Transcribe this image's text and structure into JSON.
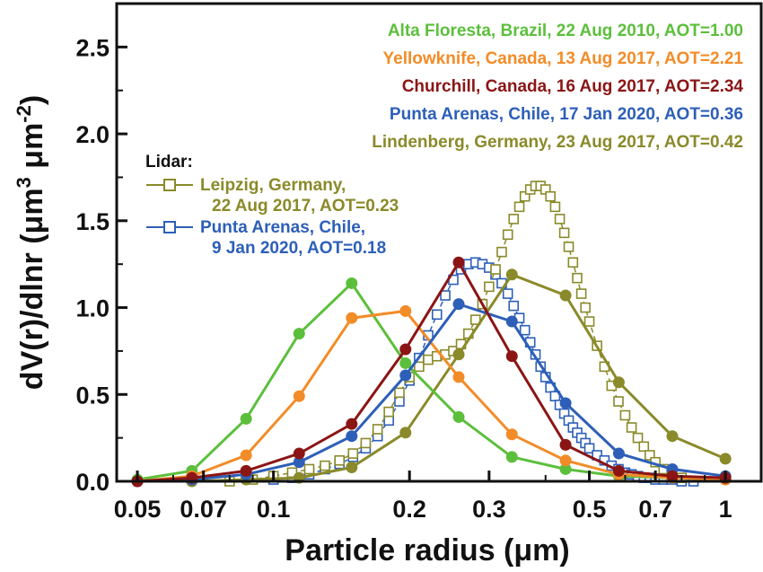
{
  "chart_data": {
    "type": "line",
    "xlabel": "Particle radius (μm)",
    "ylabel_main": "dV(r)/dlnr (μm",
    "ylabel_exp1": "3",
    "ylabel_mid": " μm",
    "ylabel_exp2": "-2",
    "ylabel_end": ")",
    "xscale": "log",
    "xlim": [
      0.045,
      1.2
    ],
    "ylim": [
      0,
      2.75
    ],
    "x_ticks": [
      {
        "value": 0.05,
        "label": "0.05"
      },
      {
        "value": 0.07,
        "label": "0.07"
      },
      {
        "value": 0.1,
        "label": "0.1"
      },
      {
        "value": 0.2,
        "label": "0.2"
      },
      {
        "value": 0.3,
        "label": "0.3"
      },
      {
        "value": 0.5,
        "label": "0.5"
      },
      {
        "value": 0.7,
        "label": "0.7"
      },
      {
        "value": 1,
        "label": "1"
      }
    ],
    "y_ticks": [
      {
        "value": 0.0,
        "label": "0.0"
      },
      {
        "value": 0.5,
        "label": "0.5"
      },
      {
        "value": 1.0,
        "label": "1.0"
      },
      {
        "value": 1.5,
        "label": "1.5"
      },
      {
        "value": 2.0,
        "label": "2.0"
      },
      {
        "value": 2.5,
        "label": "2.5"
      }
    ],
    "legend_placement": "top-right",
    "lidar_legend_title": "Lidar:",
    "series": [
      {
        "name": "Alta Floresta, Brazil, 22 Aug 2010, AOT=1.00",
        "color": "#5cbf3c",
        "marker": "filled-circle",
        "line": "solid",
        "x": [
          0.05,
          0.066,
          0.087,
          0.114,
          0.149,
          0.196,
          0.257,
          0.337,
          0.443,
          0.581,
          0.763,
          1.0
        ],
        "y": [
          0.01,
          0.06,
          0.36,
          0.85,
          1.14,
          0.68,
          0.37,
          0.14,
          0.07,
          0.03,
          0.02,
          0.01
        ]
      },
      {
        "name": "Yellowknife, Canada, 13 Aug 2017, AOT=2.21",
        "color": "#f28c28",
        "marker": "filled-circle",
        "line": "solid",
        "x": [
          0.05,
          0.066,
          0.087,
          0.114,
          0.149,
          0.196,
          0.257,
          0.337,
          0.443,
          0.581,
          0.763,
          1.0
        ],
        "y": [
          0.0,
          0.03,
          0.15,
          0.49,
          0.94,
          0.98,
          0.6,
          0.27,
          0.12,
          0.04,
          0.02,
          0.01
        ]
      },
      {
        "name": "Churchill, Canada, 16 Aug 2017, AOT=2.34",
        "color": "#8b1515",
        "marker": "filled-circle",
        "line": "solid",
        "x": [
          0.05,
          0.066,
          0.087,
          0.114,
          0.149,
          0.196,
          0.257,
          0.337,
          0.443,
          0.581,
          0.763,
          1.0
        ],
        "y": [
          0.0,
          0.02,
          0.06,
          0.16,
          0.33,
          0.76,
          1.26,
          0.72,
          0.21,
          0.06,
          0.03,
          0.02
        ]
      },
      {
        "name": "Punta Arenas, Chile, 17 Jan 2020, AOT=0.36",
        "color": "#2d5fb8",
        "marker": "filled-circle",
        "line": "solid",
        "x": [
          0.05,
          0.066,
          0.087,
          0.114,
          0.149,
          0.196,
          0.257,
          0.337,
          0.443,
          0.581,
          0.763,
          1.0
        ],
        "y": [
          0.0,
          0.01,
          0.04,
          0.11,
          0.26,
          0.61,
          1.02,
          0.92,
          0.45,
          0.16,
          0.07,
          0.03
        ]
      },
      {
        "name": "Lindenberg, Germany, 23 Aug 2017, AOT=0.42",
        "color": "#8a8a2a",
        "marker": "filled-circle",
        "line": "solid",
        "x": [
          0.05,
          0.066,
          0.087,
          0.114,
          0.149,
          0.196,
          0.257,
          0.337,
          0.443,
          0.581,
          0.763,
          1.0
        ],
        "y": [
          0.0,
          0.0,
          0.01,
          0.02,
          0.08,
          0.28,
          0.73,
          1.19,
          1.07,
          0.57,
          0.26,
          0.13
        ]
      },
      {
        "name": "Leipzig, Germany,",
        "name_line2": "22 Aug 2017, AOT=0.23",
        "color": "#8a8a2a",
        "marker": "open-square",
        "line": "dashed",
        "lidar": true,
        "x": [
          0.08,
          0.09,
          0.1,
          0.11,
          0.12,
          0.13,
          0.14,
          0.15,
          0.16,
          0.17,
          0.18,
          0.19,
          0.2,
          0.21,
          0.22,
          0.23,
          0.24,
          0.25,
          0.26,
          0.27,
          0.28,
          0.29,
          0.3,
          0.31,
          0.32,
          0.33,
          0.34,
          0.35,
          0.36,
          0.37,
          0.38,
          0.39,
          0.4,
          0.41,
          0.42,
          0.43,
          0.44,
          0.45,
          0.46,
          0.47,
          0.48,
          0.49,
          0.5,
          0.52,
          0.54,
          0.56,
          0.58,
          0.6,
          0.62,
          0.64,
          0.66,
          0.68,
          0.7,
          0.73,
          0.76,
          0.8
        ],
        "y": [
          0.0,
          0.01,
          0.03,
          0.05,
          0.07,
          0.09,
          0.12,
          0.16,
          0.22,
          0.3,
          0.4,
          0.51,
          0.6,
          0.66,
          0.7,
          0.72,
          0.73,
          0.75,
          0.79,
          0.85,
          0.93,
          1.02,
          1.12,
          1.22,
          1.32,
          1.42,
          1.51,
          1.58,
          1.64,
          1.68,
          1.7,
          1.7,
          1.68,
          1.64,
          1.58,
          1.51,
          1.43,
          1.35,
          1.26,
          1.17,
          1.08,
          1.0,
          0.92,
          0.78,
          0.66,
          0.55,
          0.46,
          0.38,
          0.31,
          0.25,
          0.2,
          0.15,
          0.11,
          0.07,
          0.04,
          0.02
        ]
      },
      {
        "name": "Punta Arenas, Chile,",
        "name_line2": "9 Jan 2020, AOT=0.18",
        "color": "#2d5fb8",
        "marker": "open-square",
        "line": "dashed",
        "lidar": true,
        "x": [
          0.1,
          0.11,
          0.12,
          0.13,
          0.14,
          0.15,
          0.16,
          0.17,
          0.18,
          0.19,
          0.2,
          0.21,
          0.22,
          0.23,
          0.24,
          0.25,
          0.26,
          0.27,
          0.28,
          0.29,
          0.3,
          0.31,
          0.32,
          0.33,
          0.34,
          0.35,
          0.36,
          0.37,
          0.38,
          0.39,
          0.4,
          0.41,
          0.42,
          0.43,
          0.44,
          0.45,
          0.46,
          0.47,
          0.48,
          0.49,
          0.5,
          0.52,
          0.54,
          0.56,
          0.58,
          0.6,
          0.62,
          0.64,
          0.66,
          0.68,
          0.7,
          0.73,
          0.76,
          0.8,
          0.85
        ],
        "y": [
          0.01,
          0.02,
          0.04,
          0.07,
          0.1,
          0.14,
          0.19,
          0.26,
          0.35,
          0.46,
          0.58,
          0.71,
          0.84,
          0.96,
          1.07,
          1.16,
          1.22,
          1.25,
          1.26,
          1.25,
          1.23,
          1.19,
          1.14,
          1.08,
          1.01,
          0.94,
          0.87,
          0.8,
          0.73,
          0.66,
          0.6,
          0.54,
          0.49,
          0.44,
          0.39,
          0.35,
          0.31,
          0.28,
          0.25,
          0.22,
          0.19,
          0.15,
          0.12,
          0.09,
          0.07,
          0.05,
          0.04,
          0.03,
          0.02,
          0.02,
          0.01,
          0.01,
          0.01,
          0.0,
          0.0
        ]
      }
    ]
  }
}
